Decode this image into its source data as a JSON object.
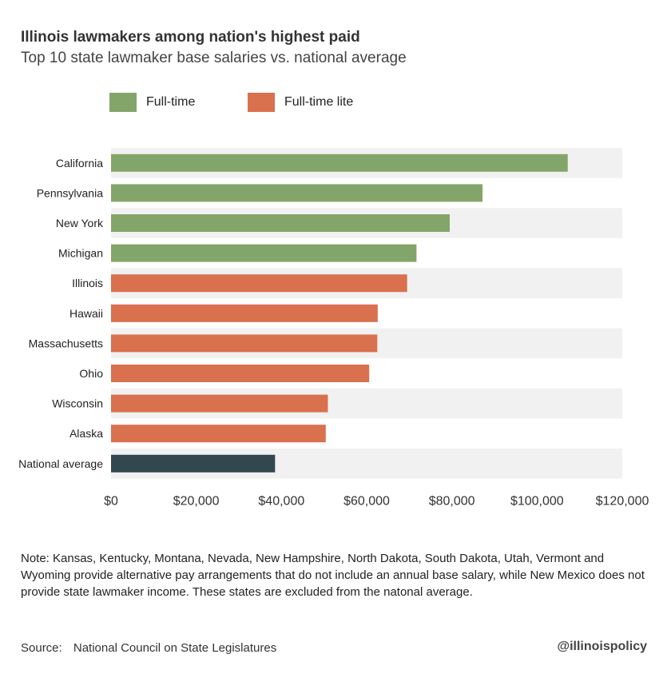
{
  "title": "Illinois lawmakers among nation's highest paid",
  "subtitle": "Top 10 state lawmaker base salaries vs. national average",
  "legend": [
    {
      "label": "Full-time",
      "color": "#84a56a"
    },
    {
      "label": "Full-time lite",
      "color": "#d9704e"
    }
  ],
  "chart_data": {
    "type": "bar",
    "orientation": "horizontal",
    "categories": [
      "California",
      "Pennsylvania",
      "New York",
      "Michigan",
      "Illinois",
      "Hawaii",
      "Massachusetts",
      "Ohio",
      "Wisconsin",
      "Alaska",
      "National average"
    ],
    "values": [
      107200,
      87200,
      79500,
      71700,
      69500,
      62600,
      62500,
      60600,
      50900,
      50400,
      38500
    ],
    "groups": [
      "Full-time",
      "Full-time",
      "Full-time",
      "Full-time",
      "Full-time lite",
      "Full-time lite",
      "Full-time lite",
      "Full-time lite",
      "Full-time lite",
      "Full-time lite",
      "National average"
    ],
    "colors": {
      "Full-time": "#84a56a",
      "Full-time lite": "#d9704e",
      "National average": "#33474f"
    },
    "xlim": [
      0,
      120000
    ],
    "xticks": [
      0,
      20000,
      40000,
      60000,
      80000,
      100000,
      120000
    ],
    "xtick_labels": [
      "$0",
      "$20,000",
      "$40,000",
      "$60,000",
      "$80,000",
      "$100,000",
      "$120,000"
    ],
    "band_color": "#f1f1f1",
    "legend_position": "top-left"
  },
  "note": "Note: Kansas, Kentucky, Montana, Nevada, New Hampshire, North Dakota, South Dakota, Utah, Vermont and Wyoming provide alternative pay arrangements that do not include an annual base salary, while New Mexico does not provide state lawmaker income. These states are excluded from the natonal average.",
  "source": {
    "label": "Source:",
    "text": "National Council on State Legislatures"
  },
  "handle": "@illinoispolicy"
}
